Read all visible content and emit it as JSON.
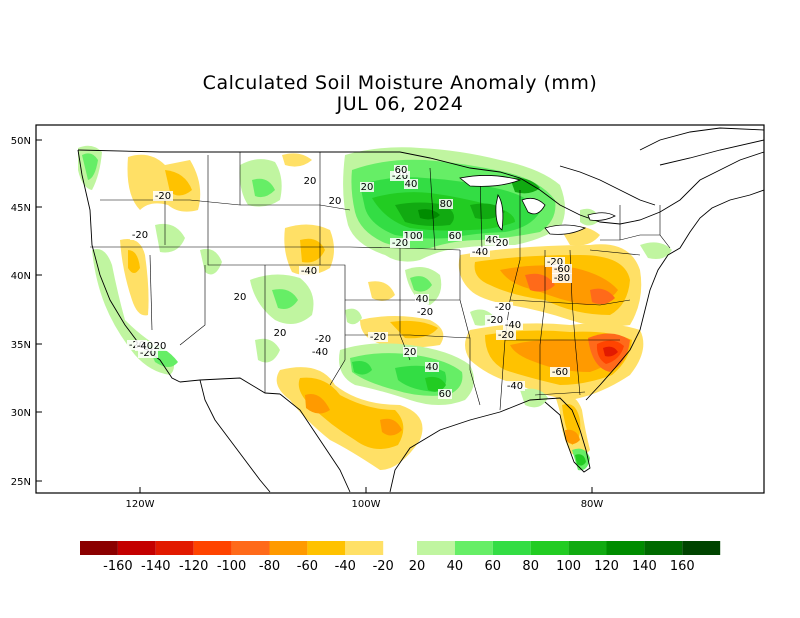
{
  "title": "Calculated Soil Moisture Anomaly (mm)",
  "date": "JUL 06, 2024",
  "lat_labels": [
    "50N",
    "45N",
    "40N",
    "35N",
    "30N",
    "25N"
  ],
  "lon_labels": [
    "120W",
    "100W",
    "80W"
  ],
  "colorbar": {
    "dry_colors": [
      "#8b0000",
      "#c40000",
      "#e21a00",
      "#ff4400",
      "#ff6a1a",
      "#ff9a00",
      "#ffc200",
      "#ffe066"
    ],
    "wet_colors": [
      "#c0f5a0",
      "#66ee66",
      "#33dd44",
      "#22cc22",
      "#11aa11",
      "#008c00",
      "#006a00",
      "#004400"
    ],
    "dry_labels": [
      "-160",
      "-140",
      "-120",
      "-100",
      "-80",
      "-60",
      "-40",
      "-20"
    ],
    "wet_labels": [
      "20",
      "40",
      "60",
      "80",
      "100",
      "120",
      "140",
      "160"
    ]
  },
  "contour_labels": [
    "-20",
    "-20",
    "-20",
    "-40",
    "20",
    "20",
    "20",
    "20",
    "-20",
    "-20",
    "-40",
    "-20",
    "20",
    "40",
    "60",
    "80",
    "100",
    "60",
    "40",
    "20",
    "-40",
    "-20",
    "-20",
    "40",
    "-20",
    "-40",
    "-20",
    "-60",
    "-80",
    "-60",
    "-40",
    "-20",
    "20",
    "40",
    "60",
    "-20",
    "-20",
    "-40",
    "20"
  ]
}
